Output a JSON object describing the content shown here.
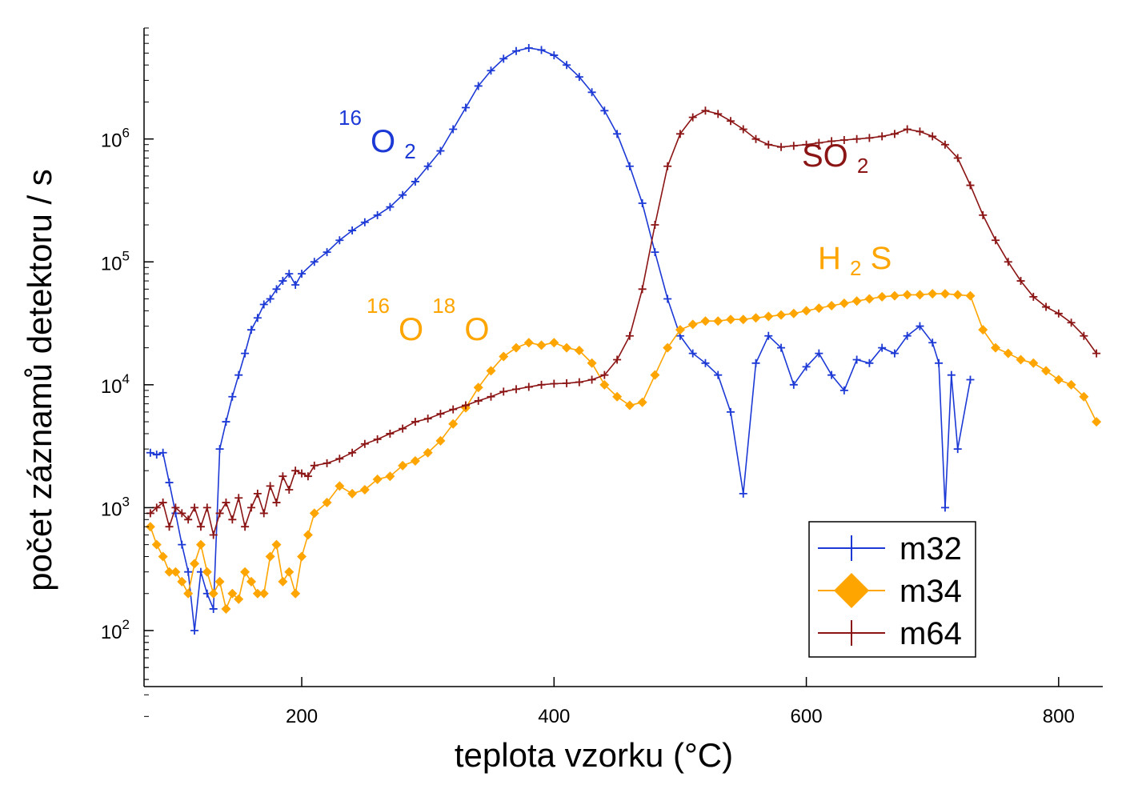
{
  "chart_data": {
    "type": "line",
    "xlabel": "teplota vzorku (°C)",
    "ylabel": "počet záznamů detektoru / s",
    "xlim": [
      75,
      835
    ],
    "ylim": [
      35,
      8000000
    ],
    "yscale": "log",
    "x_ticks": [
      200,
      400,
      600,
      800
    ],
    "y_ticks": [
      {
        "value": 100,
        "base": "10",
        "exp": "2"
      },
      {
        "value": 1000,
        "base": "10",
        "exp": "3"
      },
      {
        "value": 10000,
        "base": "10",
        "exp": "4"
      },
      {
        "value": 100000,
        "base": "10",
        "exp": "5"
      },
      {
        "value": 1000000,
        "base": "10",
        "exp": "6"
      }
    ],
    "legend_position": "bottom-right",
    "series": [
      {
        "name": "m32",
        "color": "#1c39d6",
        "marker": "plus",
        "x": [
          80,
          85,
          90,
          95,
          100,
          105,
          110,
          115,
          120,
          125,
          130,
          135,
          140,
          145,
          150,
          155,
          160,
          165,
          170,
          175,
          180,
          185,
          190,
          195,
          200,
          210,
          220,
          230,
          240,
          250,
          260,
          270,
          280,
          290,
          300,
          310,
          320,
          330,
          340,
          350,
          360,
          370,
          380,
          390,
          400,
          410,
          420,
          430,
          440,
          450,
          460,
          470,
          480,
          490,
          500,
          510,
          520,
          530,
          540,
          550,
          560,
          570,
          580,
          590,
          600,
          610,
          620,
          630,
          640,
          650,
          660,
          670,
          680,
          690,
          700,
          705,
          710,
          715,
          720,
          730
        ],
        "y": [
          2800,
          2700,
          2800,
          1600,
          900,
          500,
          300,
          100,
          300,
          200,
          150,
          3000,
          5000,
          8000,
          12000,
          18000,
          28000,
          35000,
          45000,
          50000,
          60000,
          70000,
          80000,
          65000,
          80000,
          100000,
          120000,
          150000,
          180000,
          210000,
          240000,
          280000,
          350000,
          450000,
          600000,
          800000,
          1200000,
          1800000,
          2700000,
          3600000,
          4500000,
          5200000,
          5500000,
          5300000,
          4800000,
          4000000,
          3200000,
          2400000,
          1700000,
          1100000,
          600000,
          300000,
          120000,
          50000,
          25000,
          18000,
          15000,
          12000,
          6000,
          1300,
          15000,
          25000,
          20000,
          10000,
          14000,
          18000,
          12000,
          9000,
          16000,
          15000,
          20000,
          18000,
          25000,
          30000,
          22000,
          15000,
          1000,
          12000,
          3000,
          11000
        ]
      },
      {
        "name": "m34",
        "color": "#ffa500",
        "marker": "diamond",
        "x": [
          80,
          85,
          90,
          95,
          100,
          105,
          110,
          115,
          120,
          125,
          130,
          135,
          140,
          145,
          150,
          155,
          160,
          165,
          170,
          175,
          180,
          185,
          190,
          195,
          200,
          205,
          210,
          220,
          230,
          240,
          250,
          260,
          270,
          280,
          290,
          300,
          310,
          320,
          330,
          340,
          350,
          360,
          370,
          380,
          390,
          400,
          410,
          420,
          430,
          440,
          450,
          460,
          470,
          480,
          490,
          500,
          510,
          520,
          530,
          540,
          550,
          560,
          570,
          580,
          590,
          600,
          610,
          620,
          630,
          640,
          650,
          660,
          670,
          680,
          690,
          700,
          710,
          720,
          730,
          740,
          750,
          760,
          770,
          780,
          790,
          800,
          810,
          820,
          830
        ],
        "y": [
          700,
          500,
          400,
          300,
          300,
          250,
          200,
          350,
          500,
          300,
          200,
          250,
          150,
          200,
          180,
          300,
          250,
          200,
          200,
          400,
          500,
          250,
          300,
          200,
          400,
          600,
          900,
          1100,
          1500,
          1300,
          1400,
          1700,
          1800,
          2200,
          2400,
          2800,
          3500,
          4800,
          6500,
          9500,
          13000,
          17000,
          20000,
          22000,
          21000,
          22000,
          20000,
          19000,
          15000,
          10000,
          8000,
          6800,
          7200,
          12000,
          20000,
          28000,
          31000,
          33000,
          33000,
          34000,
          34000,
          35000,
          36000,
          37000,
          38000,
          40000,
          42000,
          44000,
          46000,
          48000,
          50000,
          52000,
          53000,
          54000,
          54000,
          55000,
          55000,
          54000,
          53000,
          28000,
          20000,
          18000,
          16000,
          15000,
          13000,
          11000,
          10000,
          8000,
          5000
        ]
      },
      {
        "name": "m64",
        "color": "#8b1414",
        "marker": "plus",
        "x": [
          80,
          85,
          90,
          95,
          100,
          105,
          110,
          115,
          120,
          125,
          130,
          135,
          140,
          145,
          150,
          155,
          160,
          165,
          170,
          175,
          180,
          185,
          190,
          195,
          200,
          205,
          210,
          220,
          230,
          240,
          250,
          260,
          270,
          280,
          290,
          300,
          310,
          320,
          330,
          340,
          350,
          360,
          370,
          380,
          390,
          400,
          410,
          420,
          430,
          440,
          450,
          460,
          470,
          480,
          490,
          500,
          510,
          520,
          530,
          540,
          550,
          560,
          570,
          580,
          590,
          600,
          610,
          620,
          630,
          640,
          650,
          660,
          670,
          680,
          690,
          700,
          710,
          720,
          730,
          740,
          750,
          760,
          770,
          780,
          790,
          800,
          810,
          820,
          830
        ],
        "y": [
          900,
          1000,
          1100,
          700,
          1000,
          900,
          800,
          1000,
          700,
          1000,
          600,
          900,
          1100,
          800,
          1200,
          700,
          1000,
          1300,
          900,
          1500,
          1100,
          1800,
          1400,
          2000,
          1900,
          1800,
          2200,
          2300,
          2500,
          2800,
          3300,
          3600,
          4000,
          4400,
          5000,
          5300,
          5800,
          6300,
          6800,
          7400,
          8000,
          8800,
          9200,
          9600,
          10000,
          10200,
          10300,
          10500,
          11000,
          12000,
          16000,
          25000,
          60000,
          200000,
          600000,
          1100000,
          1500000,
          1700000,
          1600000,
          1400000,
          1200000,
          1000000,
          900000,
          860000,
          880000,
          900000,
          930000,
          960000,
          980000,
          1000000,
          1020000,
          1050000,
          1100000,
          1200000,
          1150000,
          1050000,
          900000,
          700000,
          420000,
          240000,
          150000,
          100000,
          70000,
          52000,
          43000,
          38000,
          32000,
          25000,
          18000
        ]
      }
    ],
    "annotations": [
      {
        "sup": "16",
        "base": "O",
        "sub": "2",
        "color": "#1c39d6"
      },
      {
        "base": "SO",
        "sub": "2",
        "color": "#8b1414"
      },
      {
        "base": "H",
        "sub": "2",
        "tail": "S",
        "color": "#ffa500"
      },
      {
        "sup": "16",
        "base": "O",
        "sup2": "18",
        "tail": "O",
        "color": "#ffa500"
      }
    ]
  }
}
